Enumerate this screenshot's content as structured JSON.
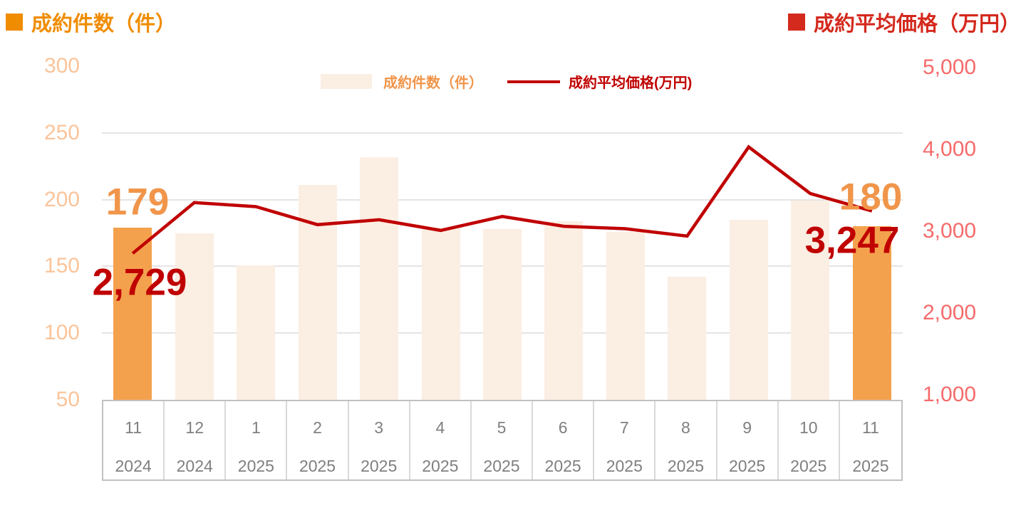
{
  "titles": {
    "left": "成約件数（件）",
    "right": "成約平均価格（万円）"
  },
  "legend": {
    "bars_label": "成約件数（件）",
    "line_label": "成約平均価格(万円)"
  },
  "colors": {
    "left_title_orange": "#F08C00",
    "right_title_red": "#D4291D",
    "bar_highlight_orange": "#F4A14E",
    "bar_light_peach": "#FBEEE3",
    "line_dark_red": "#C00000",
    "bar_value_label_orange": "#F0954A",
    "line_value_label_red": "#C00000",
    "left_axis_tick": "#FAC49A",
    "right_axis_tick": "#F56A6A",
    "x_axis_text_gray": "#7F7F7F",
    "gridline_gray": "#E6E4E3",
    "table_border_gray": "#D9D9D9"
  },
  "chart_data": {
    "type": "bar+line",
    "categories": [
      "11",
      "12",
      "1",
      "2",
      "3",
      "4",
      "5",
      "6",
      "7",
      "8",
      "9",
      "10",
      "11"
    ],
    "years": [
      "2024",
      "2024",
      "2025",
      "2025",
      "2025",
      "2025",
      "2025",
      "2025",
      "2025",
      "2025",
      "2025",
      "2025",
      "2025"
    ],
    "series": [
      {
        "name": "成約件数（件）",
        "type": "bar",
        "axis": "left",
        "values": [
          179,
          175,
          151,
          211,
          232,
          179,
          178,
          184,
          176,
          142,
          185,
          199,
          180
        ],
        "highlight_indices": [
          0,
          12
        ]
      },
      {
        "name": "成約平均価格(万円)",
        "type": "line",
        "axis": "right",
        "values": [
          2729,
          3350,
          3300,
          3080,
          3140,
          3010,
          3180,
          3060,
          3030,
          2940,
          4030,
          3460,
          3247
        ]
      }
    ],
    "left_axis": {
      "min": 50,
      "max": 300,
      "ticks": [
        "300",
        "250",
        "200",
        "150",
        "100",
        "50"
      ]
    },
    "right_axis": {
      "min": 1000,
      "max": 5000,
      "ticks": [
        "5,000",
        "4,000",
        "3,000",
        "2,000",
        "1,000"
      ]
    },
    "gridline_values": [
      250,
      200,
      150,
      100
    ],
    "data_labels": {
      "first_bar": "179",
      "first_line": "2,729",
      "last_bar": "180",
      "last_line": "3,247"
    },
    "legend_position": "top-center",
    "grid": "horizontal-only"
  }
}
